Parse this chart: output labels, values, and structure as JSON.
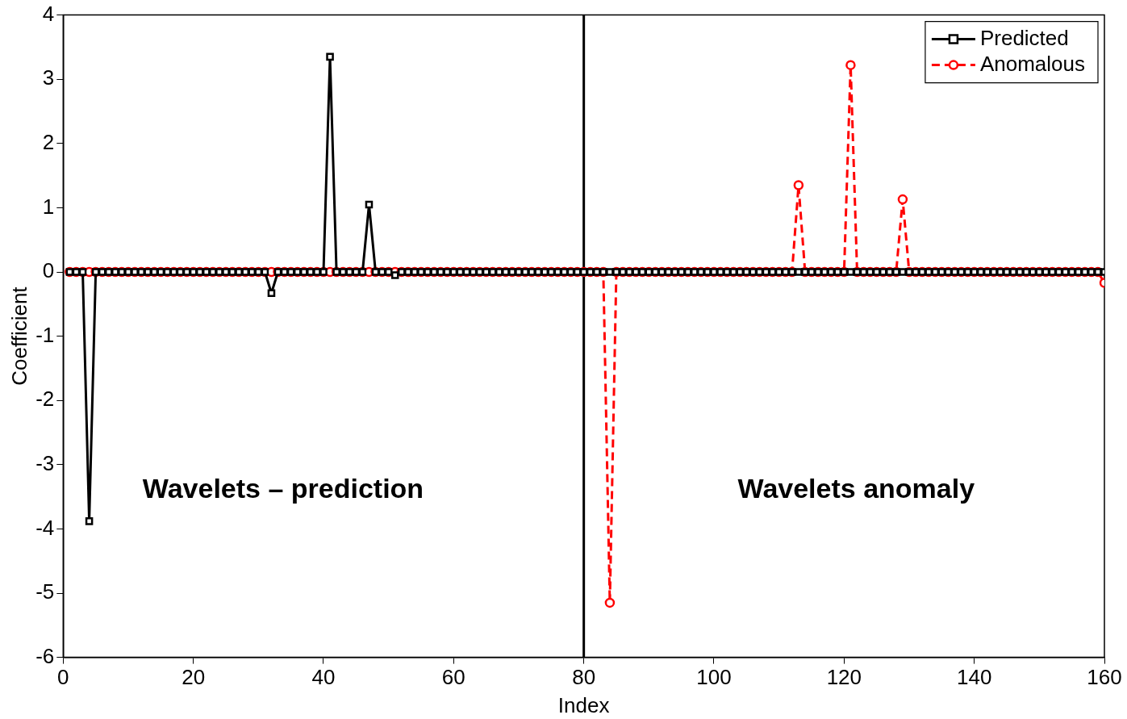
{
  "chart_data": {
    "type": "line",
    "xlabel": "Index",
    "ylabel": "Coefficient",
    "x": [
      1,
      2,
      3,
      4,
      5,
      6,
      7,
      8,
      9,
      10,
      11,
      12,
      13,
      14,
      15,
      16,
      17,
      18,
      19,
      20,
      21,
      22,
      23,
      24,
      25,
      26,
      27,
      28,
      29,
      30,
      31,
      32,
      33,
      34,
      35,
      36,
      37,
      38,
      39,
      40,
      41,
      42,
      43,
      44,
      45,
      46,
      47,
      48,
      49,
      50,
      51,
      52,
      53,
      54,
      55,
      56,
      57,
      58,
      59,
      60,
      61,
      62,
      63,
      64,
      65,
      66,
      67,
      68,
      69,
      70,
      71,
      72,
      73,
      74,
      75,
      76,
      77,
      78,
      79,
      80,
      81,
      82,
      83,
      84,
      85,
      86,
      87,
      88,
      89,
      90,
      91,
      92,
      93,
      94,
      95,
      96,
      97,
      98,
      99,
      100,
      101,
      102,
      103,
      104,
      105,
      106,
      107,
      108,
      109,
      110,
      111,
      112,
      113,
      114,
      115,
      116,
      117,
      118,
      119,
      120,
      121,
      122,
      123,
      124,
      125,
      126,
      127,
      128,
      129,
      130,
      131,
      132,
      133,
      134,
      135,
      136,
      137,
      138,
      139,
      140,
      141,
      142,
      143,
      144,
      145,
      146,
      147,
      148,
      149,
      150,
      151,
      152,
      153,
      154,
      155,
      156,
      157,
      158,
      159,
      160
    ],
    "series": [
      {
        "name": "Predicted",
        "color": "#000000",
        "marker": "square",
        "line_style": "solid",
        "values": [
          0,
          0,
          0,
          -3.88,
          0,
          0,
          0,
          0,
          0,
          0,
          0,
          0,
          0,
          0,
          0,
          0,
          0,
          0,
          0,
          0,
          0,
          0,
          0,
          0,
          0,
          0,
          0,
          0,
          0,
          0,
          0,
          -0.33,
          0,
          0,
          0,
          0,
          0,
          0,
          0,
          0,
          3.35,
          0,
          0,
          0,
          0,
          0,
          1.05,
          0,
          0,
          0,
          -0.05,
          0,
          0,
          0,
          0,
          0,
          0,
          0,
          0,
          0,
          0,
          0,
          0,
          0,
          0,
          0,
          0,
          0,
          0,
          0,
          0,
          0,
          0,
          0,
          0,
          0,
          0,
          0,
          0,
          0,
          0,
          0,
          0,
          0,
          0,
          0,
          0,
          0,
          0,
          0,
          0,
          0,
          0,
          0,
          0,
          0,
          0,
          0,
          0,
          0,
          0,
          0,
          0,
          0,
          0,
          0,
          0,
          0,
          0,
          0,
          0,
          0,
          0,
          0,
          0,
          0,
          0,
          0,
          0,
          0,
          0,
          0,
          0,
          0,
          0,
          0,
          0,
          0,
          0,
          0,
          0,
          0,
          0,
          0,
          0,
          0,
          0,
          0,
          0,
          0,
          0,
          0,
          0,
          0,
          0,
          0,
          0,
          0,
          0,
          0,
          0,
          0,
          0,
          0,
          0,
          0,
          0,
          0,
          0,
          0
        ]
      },
      {
        "name": "Anomalous",
        "color": "#ff0000",
        "marker": "circle",
        "line_style": "dashed",
        "values": [
          0,
          0,
          0,
          0,
          0,
          0,
          0,
          0,
          0,
          0,
          0,
          0,
          0,
          0,
          0,
          0,
          0,
          0,
          0,
          0,
          0,
          0,
          0,
          0,
          0,
          0,
          0,
          0,
          0,
          0,
          0,
          0,
          0,
          0,
          0,
          0,
          0,
          0,
          0,
          0,
          0,
          0,
          0,
          0,
          0,
          0,
          0,
          0,
          0,
          0,
          0,
          0,
          0,
          0,
          0,
          0,
          0,
          0,
          0,
          0,
          0,
          0,
          0,
          0,
          0,
          0,
          0,
          0,
          0,
          0,
          0,
          0,
          0,
          0,
          0,
          0,
          0,
          0,
          0,
          0,
          0,
          0,
          0,
          -5.15,
          0,
          0,
          0,
          0,
          0,
          0,
          0,
          0,
          0,
          0,
          0,
          0,
          0,
          0,
          0,
          0,
          0,
          0,
          0,
          0,
          0,
          0,
          0,
          0,
          0,
          0,
          0,
          0,
          1.35,
          0,
          0,
          0,
          0,
          0,
          0,
          0,
          3.22,
          0,
          0,
          0,
          0,
          0,
          0,
          0,
          1.13,
          0,
          0,
          0,
          0,
          0,
          0,
          0,
          0,
          0,
          0,
          0,
          0,
          0,
          0,
          0,
          0,
          0,
          0,
          0,
          0,
          0,
          0,
          0,
          0,
          0,
          0,
          0,
          0,
          0,
          0,
          -0.17
        ]
      }
    ],
    "xlim": [
      0,
      160
    ],
    "xticks": [
      0,
      20,
      40,
      60,
      80,
      100,
      120,
      140,
      160
    ],
    "ylim": [
      -6,
      4
    ],
    "yticks": [
      -6,
      -5,
      -4,
      -3,
      -2,
      -1,
      0,
      1,
      2,
      3,
      4
    ],
    "ref_lines": [
      {
        "axis": "x",
        "value": 80,
        "color": "#000000",
        "line_style": "solid"
      }
    ],
    "annotations": [
      "Wavelets – prediction",
      "Wavelets anomaly"
    ],
    "legend": "top right",
    "grid": false
  }
}
